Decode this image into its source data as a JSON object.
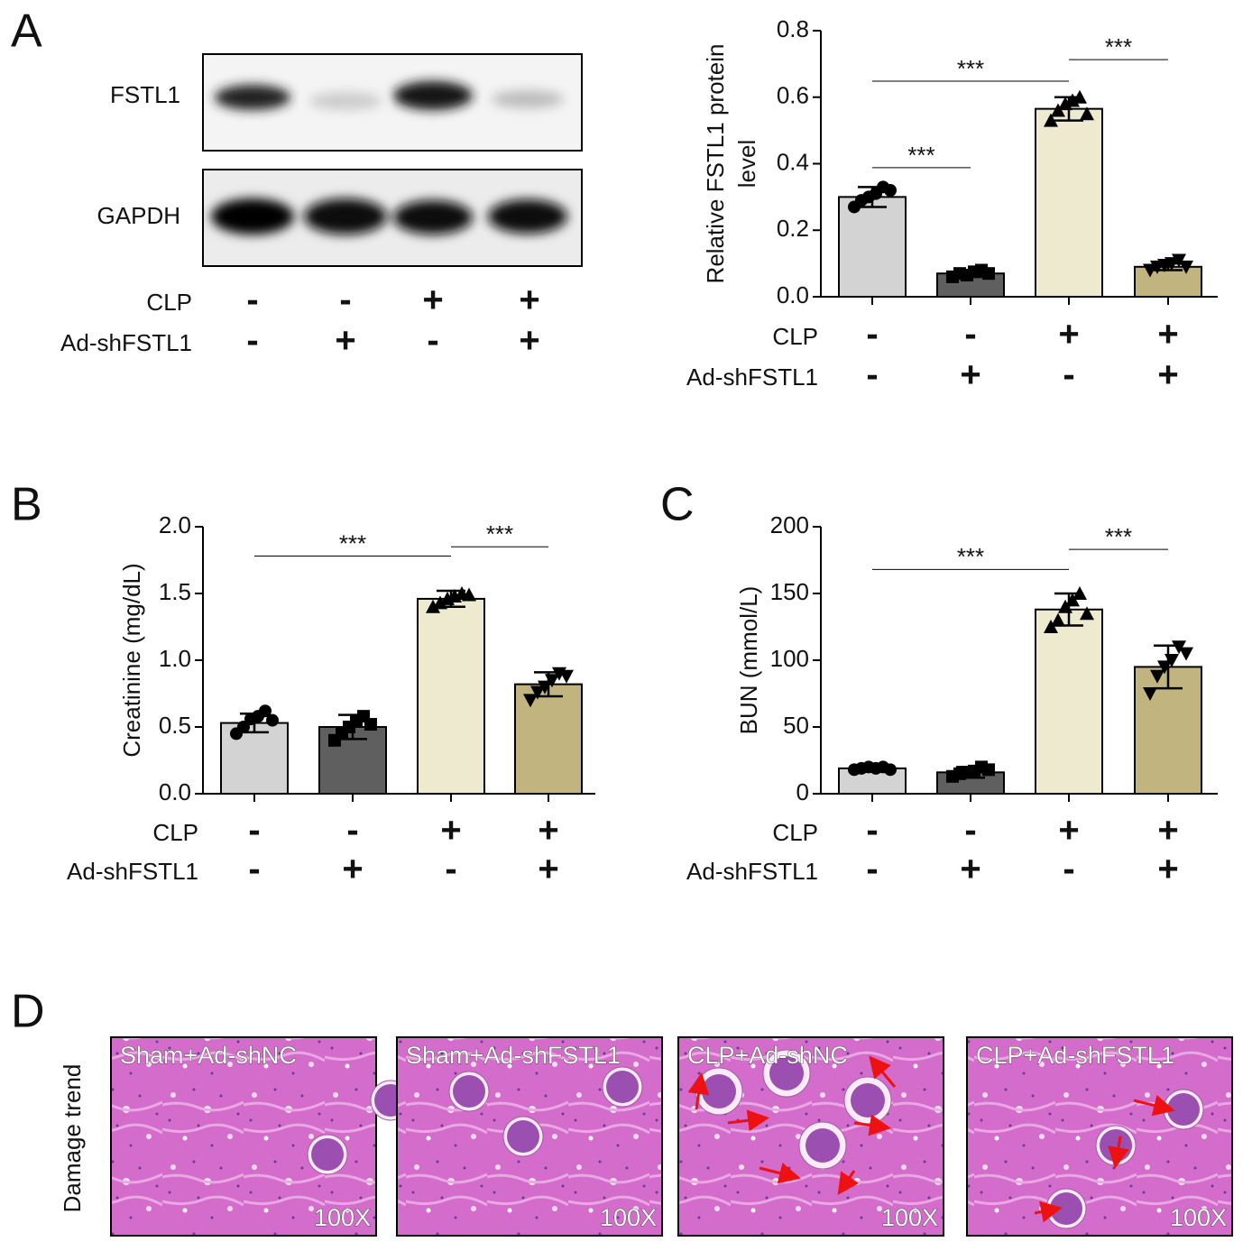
{
  "panels": [
    "A",
    "B",
    "C",
    "D"
  ],
  "blot": {
    "labels": [
      "FSTL1",
      "GAPDH"
    ],
    "conditions": [
      {
        "name": "CLP",
        "signs": [
          "-",
          "-",
          "+",
          "+"
        ]
      },
      {
        "name": "Ad-shFSTL1",
        "signs": [
          "-",
          "+",
          "-",
          "+"
        ]
      }
    ]
  },
  "chart_data": [
    {
      "type": "bar",
      "ylabel": [
        "Relative FSTL1 protein",
        "level"
      ],
      "values": [
        0.3,
        0.07,
        0.565,
        0.09
      ],
      "errors": [
        0.03,
        0.01,
        0.035,
        0.01
      ],
      "points": [
        [
          0.27,
          0.29,
          0.3,
          0.31,
          0.33,
          0.32
        ],
        [
          0.06,
          0.07,
          0.065,
          0.075,
          0.08,
          0.07
        ],
        [
          0.53,
          0.56,
          0.58,
          0.59,
          0.6,
          0.55
        ],
        [
          0.08,
          0.09,
          0.095,
          0.1,
          0.11,
          0.09
        ]
      ],
      "colors": [
        "#d3d3d3",
        "#5f5f5f",
        "#eeead0",
        "#c2b47f"
      ],
      "markers": [
        "circle",
        "square",
        "triangle-up",
        "triangle-down"
      ],
      "ylim": [
        0,
        0.8
      ],
      "yticks": [
        {
          "value": 0,
          "label": "0.0"
        },
        0.2,
        0.4,
        0.6,
        0.8
      ],
      "annotations": [
        {
          "from": 0,
          "to": 1,
          "y": 0.388,
          "label": "***"
        },
        {
          "from": 0,
          "to": 2,
          "y": 0.648,
          "label": "***"
        },
        {
          "from": 2,
          "to": 3,
          "y": 0.713,
          "label": "***"
        }
      ],
      "conditions": [
        {
          "name": "CLP",
          "signs": [
            "-",
            "-",
            "+",
            "+"
          ]
        },
        {
          "name": "Ad-shFSTL1",
          "signs": [
            "-",
            "+",
            "-",
            "+"
          ]
        }
      ]
    },
    {
      "type": "bar",
      "ylabel": [
        "Creatinine (mg/dL)"
      ],
      "values": [
        0.53,
        0.5,
        1.46,
        0.82
      ],
      "errors": [
        0.07,
        0.09,
        0.06,
        0.09
      ],
      "points": [
        [
          0.45,
          0.5,
          0.56,
          0.58,
          0.62,
          0.55
        ],
        [
          0.4,
          0.45,
          0.5,
          0.55,
          0.58,
          0.52
        ],
        [
          1.4,
          1.43,
          1.46,
          1.48,
          1.5,
          1.49
        ],
        [
          0.7,
          0.76,
          0.8,
          0.85,
          0.9,
          0.88
        ]
      ],
      "colors": [
        "#d3d3d3",
        "#5f5f5f",
        "#eeead0",
        "#c2b47f"
      ],
      "markers": [
        "circle",
        "square",
        "triangle-up",
        "triangle-down"
      ],
      "ylim": [
        0,
        2
      ],
      "yticks": [
        {
          "value": 0,
          "label": "0.0"
        },
        0.5,
        {
          "value": 1,
          "label": "1.0"
        },
        1.5,
        {
          "value": 2,
          "label": "2.0"
        }
      ],
      "annotations": [
        {
          "from": 0,
          "to": 2,
          "y": 1.78,
          "label": "***"
        },
        {
          "from": 2,
          "to": 3,
          "y": 1.85,
          "label": "***"
        }
      ],
      "conditions": [
        {
          "name": "CLP",
          "signs": [
            "-",
            "-",
            "+",
            "+"
          ]
        },
        {
          "name": "Ad-shFSTL1",
          "signs": [
            "-",
            "+",
            "-",
            "+"
          ]
        }
      ]
    },
    {
      "type": "bar",
      "ylabel": [
        "BUN (mmol/L)"
      ],
      "values": [
        19,
        16,
        138,
        95
      ],
      "errors": [
        1.5,
        4,
        12,
        16
      ],
      "points": [
        [
          18,
          19,
          20,
          19,
          20,
          18
        ],
        [
          13,
          15,
          16,
          17,
          20,
          18
        ],
        [
          125,
          130,
          140,
          145,
          150,
          135
        ],
        [
          75,
          88,
          95,
          100,
          110,
          105
        ]
      ],
      "colors": [
        "#d3d3d3",
        "#5f5f5f",
        "#eeead0",
        "#c2b47f"
      ],
      "markers": [
        "circle",
        "square",
        "triangle-up",
        "triangle-down"
      ],
      "ylim": [
        0,
        200
      ],
      "yticks": [
        0,
        50,
        100,
        150,
        200
      ],
      "annotations": [
        {
          "from": 0,
          "to": 2,
          "y": 168,
          "label": "***"
        },
        {
          "from": 2,
          "to": 3,
          "y": 183,
          "label": "***"
        }
      ],
      "conditions": [
        {
          "name": "CLP",
          "signs": [
            "-",
            "-",
            "+",
            "+"
          ]
        },
        {
          "name": "Ad-shFSTL1",
          "signs": [
            "-",
            "+",
            "-",
            "+"
          ]
        }
      ]
    }
  ],
  "histology": {
    "ylabel": "Damage trend",
    "images": [
      {
        "label": "Sham+Ad-shNC",
        "magnification": "100X"
      },
      {
        "label": "Sham+Ad-shFSTL1",
        "magnification": "100X"
      },
      {
        "label": "CLP+Ad-shNC",
        "magnification": "100X"
      },
      {
        "label": "CLP+Ad-shFSTL1",
        "magnification": "100X"
      }
    ]
  }
}
